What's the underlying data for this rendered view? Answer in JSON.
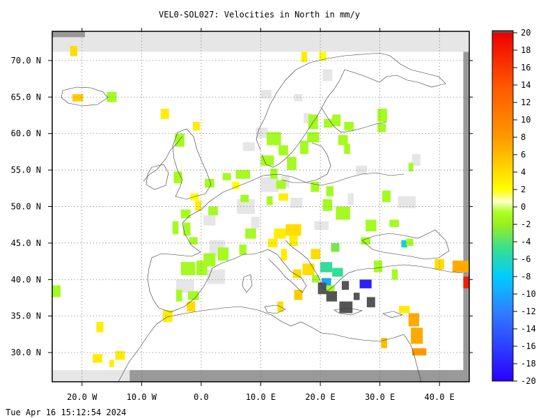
{
  "map": {
    "title": "VEL0-SOL027: Velocities in North in mm/y",
    "timestamp": "Tue Apr 16 15:12:54 2024",
    "extent": {
      "lon": [
        -25,
        45
      ],
      "lat": [
        26,
        74
      ]
    },
    "lon_ticks": [
      {
        "lon": -20,
        "label": "20.0 W"
      },
      {
        "lon": -10,
        "label": "10.0 W"
      },
      {
        "lon": 0,
        "label": "0.0"
      },
      {
        "lon": 10,
        "label": "10.0 E"
      },
      {
        "lon": 20,
        "label": "20.0 E"
      },
      {
        "lon": 30,
        "label": "30.0 E"
      },
      {
        "lon": 40,
        "label": "40.0 E"
      }
    ],
    "lat_ticks": [
      {
        "lat": 30,
        "label": "30.0 N"
      },
      {
        "lat": 35,
        "label": "35.0 N"
      },
      {
        "lat": 40,
        "label": "40.0 N"
      },
      {
        "lat": 45,
        "label": "45.0 N"
      },
      {
        "lat": 50,
        "label": "50.0 N"
      },
      {
        "lat": 55,
        "label": "55.0 N"
      },
      {
        "lat": 60,
        "label": "60.0 N"
      },
      {
        "lat": 65,
        "label": "65.0 N"
      },
      {
        "lat": 70,
        "label": "70.0 N"
      }
    ],
    "colorbar": {
      "range": [
        -20,
        20
      ],
      "ticks": [
        20,
        18,
        16,
        14,
        12,
        10,
        8,
        6,
        4,
        2,
        0,
        -2,
        -4,
        -6,
        -8,
        -10,
        -12,
        -14,
        -16,
        -18,
        -20
      ],
      "stops": [
        {
          "v": -20,
          "color": "#2a00ff"
        },
        {
          "v": -12,
          "color": "#2f7fff"
        },
        {
          "v": -8,
          "color": "#00ccff"
        },
        {
          "v": -5,
          "color": "#33dd99"
        },
        {
          "v": -2,
          "color": "#99ee22"
        },
        {
          "v": -0.6,
          "color": "#aaff22"
        },
        {
          "v": 0.6,
          "color": "#ffffcc"
        },
        {
          "v": 2,
          "color": "#ffff00"
        },
        {
          "v": 5,
          "color": "#ffcc00"
        },
        {
          "v": 8,
          "color": "#ff9900"
        },
        {
          "v": 14,
          "color": "#ff5500"
        },
        {
          "v": 20,
          "color": "#ee0000"
        }
      ]
    },
    "colors": {
      "near_zero": "#e6e6e6",
      "no_data": "#999999",
      "border_band": "#e6e6e6",
      "dark_cells": "#555555",
      "coast": "#333333",
      "grid": "#777777"
    },
    "cells": [
      {
        "lon": -22,
        "lat": 70.6,
        "w": 1.2,
        "h": 1.4,
        "v": 4
      },
      {
        "lon": -21.6,
        "lat": 64.4,
        "w": 1.8,
        "h": 1.0,
        "v": 5
      },
      {
        "lon": -15.8,
        "lat": 64.3,
        "w": 1.6,
        "h": 1.4,
        "v": -1
      },
      {
        "lon": -6.8,
        "lat": 62.0,
        "w": 1.4,
        "h": 1.4,
        "v": 3
      },
      {
        "lon": -1.4,
        "lat": 60.4,
        "w": 1.2,
        "h": 1.2,
        "v": 3
      },
      {
        "lon": 16.8,
        "lat": 69.8,
        "w": 1.0,
        "h": 1.4,
        "v": 3
      },
      {
        "lon": 19.8,
        "lat": 70.0,
        "w": 1.2,
        "h": 1.2,
        "v": 2
      },
      {
        "lon": -4.4,
        "lat": 58.2,
        "w": 1.6,
        "h": 1.8,
        "v": -1
      },
      {
        "lon": -4.6,
        "lat": 53.2,
        "w": 1.4,
        "h": 1.6,
        "v": -1
      },
      {
        "lon": -1.8,
        "lat": 50.8,
        "w": 1.4,
        "h": 1.0,
        "v": 2
      },
      {
        "lon": -1.0,
        "lat": 49.4,
        "w": 1.0,
        "h": 1.4,
        "v": 3
      },
      {
        "lon": 1.2,
        "lat": 48.8,
        "w": 1.6,
        "h": 1.2,
        "v": -1
      },
      {
        "lon": 0.6,
        "lat": 52.6,
        "w": 1.6,
        "h": 1.2,
        "v": -1
      },
      {
        "lon": 3.6,
        "lat": 53.6,
        "w": 1.4,
        "h": 1.0,
        "v": -1
      },
      {
        "lon": 5.8,
        "lat": 53.8,
        "w": 2.4,
        "h": 1.2,
        "v": -1
      },
      {
        "lon": 6.6,
        "lat": 50.6,
        "w": 1.4,
        "h": 1.0,
        "v": -1
      },
      {
        "lon": 5.2,
        "lat": 52.4,
        "w": 1.2,
        "h": 1.0,
        "v": 2
      },
      {
        "lon": 11.0,
        "lat": 58.4,
        "w": 2.4,
        "h": 1.8,
        "v": -1
      },
      {
        "lon": 13.0,
        "lat": 57.0,
        "w": 1.6,
        "h": 1.4,
        "v": -1
      },
      {
        "lon": 10.0,
        "lat": 55.6,
        "w": 2.2,
        "h": 1.4,
        "v": -1
      },
      {
        "lon": 14.4,
        "lat": 55.0,
        "w": 1.6,
        "h": 1.8,
        "v": -1
      },
      {
        "lon": 16.6,
        "lat": 57.2,
        "w": 1.4,
        "h": 1.8,
        "v": -1
      },
      {
        "lon": 18.0,
        "lat": 60.6,
        "w": 1.6,
        "h": 2.0,
        "v": -1
      },
      {
        "lon": 17.8,
        "lat": 58.8,
        "w": 2.0,
        "h": 1.4,
        "v": -1
      },
      {
        "lon": 20.6,
        "lat": 60.8,
        "w": 1.4,
        "h": 1.2,
        "v": -1
      },
      {
        "lon": 22.0,
        "lat": 61.0,
        "w": 1.4,
        "h": 1.6,
        "v": -1
      },
      {
        "lon": 24.0,
        "lat": 60.4,
        "w": 1.6,
        "h": 1.2,
        "v": -1
      },
      {
        "lon": 23.0,
        "lat": 58.4,
        "w": 1.6,
        "h": 1.4,
        "v": -1
      },
      {
        "lon": 24.0,
        "lat": 57.2,
        "w": 1.0,
        "h": 1.4,
        "v": -1
      },
      {
        "lon": 29.6,
        "lat": 61.6,
        "w": 1.6,
        "h": 1.8,
        "v": -1
      },
      {
        "lon": 29.6,
        "lat": 60.2,
        "w": 1.4,
        "h": 1.2,
        "v": -1
      },
      {
        "lon": 11.6,
        "lat": 53.8,
        "w": 1.2,
        "h": 1.4,
        "v": -1
      },
      {
        "lon": 12.6,
        "lat": 52.4,
        "w": 1.6,
        "h": 1.2,
        "v": -1
      },
      {
        "lon": 18.4,
        "lat": 52.0,
        "w": 1.4,
        "h": 1.4,
        "v": -1
      },
      {
        "lon": 21.0,
        "lat": 51.4,
        "w": 1.2,
        "h": 1.4,
        "v": -1
      },
      {
        "lon": 34.8,
        "lat": 54.8,
        "w": 0.8,
        "h": 1.2,
        "v": -1
      },
      {
        "lon": 13.0,
        "lat": 50.8,
        "w": 1.6,
        "h": 1.0,
        "v": 3
      },
      {
        "lon": 11.0,
        "lat": 50.2,
        "w": 1.0,
        "h": 1.2,
        "v": -1
      },
      {
        "lon": 20.4,
        "lat": 49.4,
        "w": 1.6,
        "h": 1.6,
        "v": -1
      },
      {
        "lon": 22.6,
        "lat": 48.2,
        "w": 2.4,
        "h": 1.8,
        "v": -1
      },
      {
        "lon": 30.4,
        "lat": 50.6,
        "w": 1.4,
        "h": 1.6,
        "v": -1
      },
      {
        "lon": 27.6,
        "lat": 46.6,
        "w": 1.8,
        "h": 1.6,
        "v": -1
      },
      {
        "lon": 26.8,
        "lat": 44.8,
        "w": 1.6,
        "h": 1.0,
        "v": -1
      },
      {
        "lon": 31.6,
        "lat": 47.2,
        "w": 1.6,
        "h": 1.0,
        "v": -1
      },
      {
        "lon": 33.6,
        "lat": 44.4,
        "w": 1.0,
        "h": 1.0,
        "v": -7
      },
      {
        "lon": 34.4,
        "lat": 44.6,
        "w": 1.2,
        "h": 1.0,
        "v": -1
      },
      {
        "lon": 29.0,
        "lat": 41.0,
        "w": 1.4,
        "h": 1.6,
        "v": -1
      },
      {
        "lon": 32.0,
        "lat": 40.0,
        "w": 1.0,
        "h": 1.4,
        "v": -1
      },
      {
        "lon": 14.2,
        "lat": 46.0,
        "w": 2.6,
        "h": 1.6,
        "v": 4
      },
      {
        "lon": 12.2,
        "lat": 45.6,
        "w": 2.0,
        "h": 1.4,
        "v": 3
      },
      {
        "lon": 11.2,
        "lat": 44.4,
        "w": 1.6,
        "h": 1.2,
        "v": 3
      },
      {
        "lon": 14.8,
        "lat": 44.6,
        "w": 1.4,
        "h": 1.4,
        "v": 3
      },
      {
        "lon": 13.4,
        "lat": 42.6,
        "w": 1.0,
        "h": 1.6,
        "v": 3
      },
      {
        "lon": 18.4,
        "lat": 42.8,
        "w": 1.6,
        "h": 1.4,
        "v": 4
      },
      {
        "lon": 17.0,
        "lat": 40.6,
        "w": 2.0,
        "h": 1.6,
        "v": 4
      },
      {
        "lon": 15.4,
        "lat": 40.2,
        "w": 1.4,
        "h": 1.2,
        "v": 4
      },
      {
        "lon": 15.6,
        "lat": 37.2,
        "w": 1.4,
        "h": 1.4,
        "v": 5
      },
      {
        "lon": 12.8,
        "lat": 35.6,
        "w": 1.0,
        "h": 1.4,
        "v": 4
      },
      {
        "lon": 7.4,
        "lat": 45.6,
        "w": 1.8,
        "h": 1.4,
        "v": -1
      },
      {
        "lon": 6.4,
        "lat": 43.4,
        "w": 1.2,
        "h": 1.4,
        "v": -1
      },
      {
        "lon": 2.8,
        "lat": 42.6,
        "w": 1.8,
        "h": 1.8,
        "v": -1
      },
      {
        "lon": 0.4,
        "lat": 41.8,
        "w": 2.0,
        "h": 1.8,
        "v": -1
      },
      {
        "lon": -0.8,
        "lat": 40.6,
        "w": 1.8,
        "h": 2.0,
        "v": -1
      },
      {
        "lon": -3.4,
        "lat": 40.6,
        "w": 2.4,
        "h": 1.8,
        "v": -1
      },
      {
        "lon": -4.2,
        "lat": 37.0,
        "w": 1.0,
        "h": 1.6,
        "v": -1
      },
      {
        "lon": -2.2,
        "lat": 37.2,
        "w": 1.8,
        "h": 1.2,
        "v": -1
      },
      {
        "lon": -2.4,
        "lat": 35.6,
        "w": 1.4,
        "h": 1.4,
        "v": 4
      },
      {
        "lon": -4.8,
        "lat": 46.2,
        "w": 1.0,
        "h": 1.8,
        "v": -1
      },
      {
        "lon": -3.0,
        "lat": 46.0,
        "w": 1.2,
        "h": 1.8,
        "v": -1
      },
      {
        "lon": -2.0,
        "lat": 44.8,
        "w": 1.4,
        "h": 1.0,
        "v": -1
      },
      {
        "lon": -3.4,
        "lat": 48.4,
        "w": 1.6,
        "h": 1.2,
        "v": -1
      },
      {
        "lon": -25,
        "lat": 37.6,
        "w": 1.4,
        "h": 1.6,
        "v": -1
      },
      {
        "lon": -6.4,
        "lat": 34.2,
        "w": 1.6,
        "h": 1.6,
        "v": 3
      },
      {
        "lon": -17.6,
        "lat": 32.8,
        "w": 1.2,
        "h": 1.4,
        "v": 3
      },
      {
        "lon": -18.2,
        "lat": 28.6,
        "w": 1.6,
        "h": 1.2,
        "v": 3
      },
      {
        "lon": -14.4,
        "lat": 29.0,
        "w": 1.6,
        "h": 1.2,
        "v": 3
      },
      {
        "lon": -15.4,
        "lat": 28.0,
        "w": 0.8,
        "h": 1.0,
        "v": 3
      },
      {
        "lon": 20.0,
        "lat": 41.0,
        "w": 2.0,
        "h": 1.4,
        "v": -5
      },
      {
        "lon": 22.0,
        "lat": 40.4,
        "w": 1.8,
        "h": 1.2,
        "v": -5
      },
      {
        "lon": 21.8,
        "lat": 43.8,
        "w": 1.4,
        "h": 1.2,
        "v": -3
      },
      {
        "lon": 20.2,
        "lat": 38.8,
        "w": 1.6,
        "h": 1.4,
        "v": -10
      },
      {
        "lon": 26.6,
        "lat": 38.8,
        "w": 2.0,
        "h": 1.2,
        "v": -18
      },
      {
        "lon": 33.2,
        "lat": 35.4,
        "w": 1.8,
        "h": 1.0,
        "v": 3
      },
      {
        "lon": 34.8,
        "lat": 33.6,
        "w": 1.8,
        "h": 1.8,
        "v": 7
      },
      {
        "lon": 35.2,
        "lat": 31.2,
        "w": 2.0,
        "h": 2.2,
        "v": 7
      },
      {
        "lon": 35.4,
        "lat": 29.6,
        "w": 2.4,
        "h": 1.0,
        "v": 8
      },
      {
        "lon": 30.2,
        "lat": 30.6,
        "w": 1.0,
        "h": 1.4,
        "v": 6
      },
      {
        "lon": 39.2,
        "lat": 41.4,
        "w": 1.6,
        "h": 1.4,
        "v": 4
      },
      {
        "lon": 42.2,
        "lat": 41.0,
        "w": 2.8,
        "h": 1.6,
        "v": 7
      },
      {
        "lon": 44.0,
        "lat": 38.8,
        "w": 1.0,
        "h": 1.6,
        "v": 18
      },
      {
        "lon": 18.6,
        "lat": 39.6,
        "w": 1.2,
        "h": 1.0,
        "v": -1
      },
      {
        "lon": 21.0,
        "lat": 37.8,
        "w": 1.4,
        "h": 1.4,
        "v": -1
      }
    ],
    "gray_cells": [
      {
        "lon": 19.6,
        "lat": 38.0,
        "w": 1.4,
        "h": 1.6
      },
      {
        "lon": 21.0,
        "lat": 37.0,
        "w": 1.8,
        "h": 1.4
      },
      {
        "lon": 23.2,
        "lat": 35.4,
        "w": 2.2,
        "h": 1.6
      },
      {
        "lon": 27.8,
        "lat": 36.2,
        "w": 1.4,
        "h": 1.4
      },
      {
        "lon": 23.6,
        "lat": 38.6,
        "w": 1.2,
        "h": 1.2
      },
      {
        "lon": 25.6,
        "lat": 37.2,
        "w": 1.0,
        "h": 1.0
      }
    ],
    "light_cells": [
      {
        "lon": 10.0,
        "lat": 64.8,
        "w": 1.8,
        "h": 1.2
      },
      {
        "lon": 15.6,
        "lat": 64.4,
        "w": 1.4,
        "h": 1.0
      },
      {
        "lon": 20.4,
        "lat": 67.2,
        "w": 1.6,
        "h": 1.6
      },
      {
        "lon": 17.2,
        "lat": 61.4,
        "w": 1.4,
        "h": 1.4
      },
      {
        "lon": 9.2,
        "lat": 59.4,
        "w": 2.0,
        "h": 1.4
      },
      {
        "lon": 7.0,
        "lat": 57.6,
        "w": 2.0,
        "h": 1.2
      },
      {
        "lon": 13.4,
        "lat": 52.6,
        "w": 1.4,
        "h": 1.6
      },
      {
        "lon": 26.0,
        "lat": 54.4,
        "w": 1.8,
        "h": 1.2
      },
      {
        "lon": 35.4,
        "lat": 55.6,
        "w": 1.4,
        "h": 1.6
      },
      {
        "lon": 33.0,
        "lat": 49.8,
        "w": 3.0,
        "h": 1.6
      },
      {
        "lon": 15.0,
        "lat": 49.8,
        "w": 2.0,
        "h": 1.4
      },
      {
        "lon": 19.0,
        "lat": 46.8,
        "w": 2.4,
        "h": 1.2
      },
      {
        "lon": 8.4,
        "lat": 47.0,
        "w": 1.4,
        "h": 1.6
      },
      {
        "lon": 0.4,
        "lat": 47.4,
        "w": 2.0,
        "h": 1.4
      },
      {
        "lon": 1.4,
        "lat": 43.2,
        "w": 2.6,
        "h": 2.2
      },
      {
        "lon": -4.2,
        "lat": 38.2,
        "w": 3.0,
        "h": 1.8
      },
      {
        "lon": 24.6,
        "lat": 50.2,
        "w": 1.0,
        "h": 1.6
      },
      {
        "lon": 1.0,
        "lat": 39.4,
        "w": 3.0,
        "h": 2.0
      },
      {
        "lon": 10.0,
        "lat": 52.0,
        "w": 3.0,
        "h": 2.0
      },
      {
        "lon": 6.0,
        "lat": 49.0,
        "w": 3.0,
        "h": 2.0
      }
    ]
  }
}
